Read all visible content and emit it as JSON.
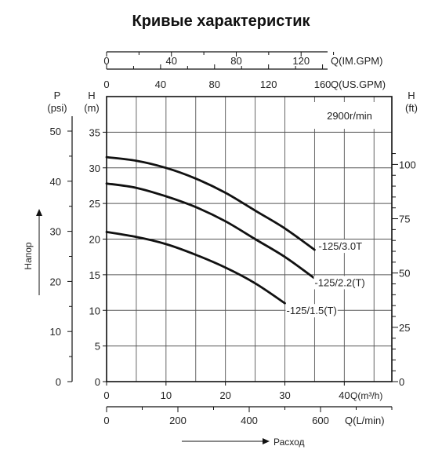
{
  "title": "Кривые характеристик",
  "chart_data": {
    "type": "line",
    "speed_label": "2900r/min",
    "x_primary": {
      "label": "Q(m³/h)",
      "ticks": [
        0,
        10,
        20,
        30,
        40
      ],
      "range": [
        0,
        48
      ]
    },
    "x_secondary": [
      {
        "label": "Q(L/min)",
        "ticks": [
          0,
          200,
          400,
          600
        ]
      },
      {
        "label": "Q(US.GPM)",
        "ticks": [
          0,
          40,
          80,
          120,
          160
        ]
      },
      {
        "label": "Q(IM.GPM)",
        "ticks": [
          0,
          40,
          80,
          120
        ]
      }
    ],
    "y_primary": {
      "label_top": "H",
      "label_unit": "(m)",
      "ticks": [
        0,
        5,
        10,
        15,
        20,
        25,
        30,
        35
      ],
      "range": [
        0,
        40
      ]
    },
    "y_left_secondary": {
      "label_top": "P",
      "label_unit": "(psi)",
      "ticks": [
        0,
        10,
        20,
        30,
        40,
        50
      ]
    },
    "y_right_secondary": {
      "label_top": "H",
      "label_unit": "(ft)",
      "ticks": [
        0,
        25,
        50,
        75,
        100
      ]
    },
    "y_axis_name": "Напор",
    "x_axis_name": "Расход",
    "series": [
      {
        "name": "-125/3.0T",
        "x": [
          0,
          5,
          10,
          15,
          20,
          25,
          30,
          35
        ],
        "y": [
          31.5,
          31,
          30,
          28.5,
          26.5,
          24,
          21.5,
          18.5
        ]
      },
      {
        "name": "-125/2.2(T)",
        "x": [
          0,
          5,
          10,
          15,
          20,
          25,
          30,
          35
        ],
        "y": [
          27.8,
          27.2,
          26,
          24.5,
          22.5,
          20,
          17.5,
          14.5
        ]
      },
      {
        "name": "-125/1.5(T)",
        "x": [
          0,
          5,
          10,
          15,
          20,
          25,
          30
        ],
        "y": [
          21,
          20.3,
          19.3,
          17.8,
          16,
          13.8,
          11
        ]
      }
    ]
  }
}
